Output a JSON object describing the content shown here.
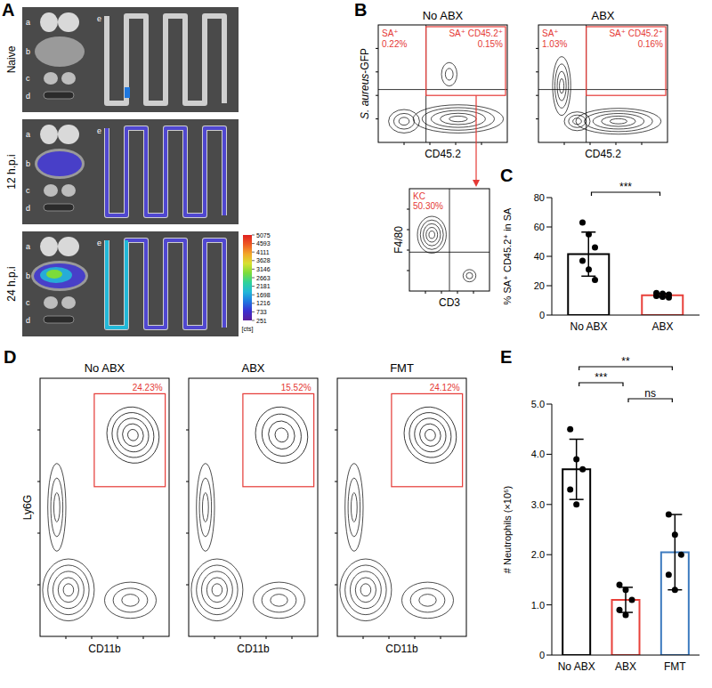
{
  "panel_a": {
    "label": "A",
    "rows": [
      "Naive",
      "12 h.p.i",
      "24 h.p.i"
    ],
    "organs": [
      "a",
      "b",
      "c",
      "d",
      "e"
    ],
    "colorbar": {
      "range": [
        251,
        5075
      ],
      "ticks": [
        251,
        733,
        1216,
        1698,
        2181,
        2663,
        3146,
        3628,
        4111,
        4593,
        5075
      ],
      "unit": "[cts]"
    }
  },
  "panel_b": {
    "label": "B",
    "x_label": "CD45.2",
    "y_label": "S. aureus-GFP",
    "plots": [
      {
        "title": "No ABX",
        "gates": [
          {
            "name": "SA⁺",
            "label": "0.22%"
          },
          {
            "name": "SA⁺ CD45.2⁺",
            "label": "0.15%"
          }
        ]
      },
      {
        "title": "ABX",
        "gates": [
          {
            "name": "SA⁺",
            "label": "1.03%"
          },
          {
            "name": "SA⁺ CD45.2⁺",
            "label": "0.16%"
          }
        ]
      }
    ],
    "subplot": {
      "gate": {
        "name": "KC",
        "label": "50.30%"
      },
      "x_label": "CD3",
      "y_label": "F4/80"
    }
  },
  "panel_d": {
    "label": "D",
    "x_label": "CD11b",
    "y_label": "Ly6G",
    "plots": [
      {
        "title": "No ABX",
        "gate": "24.23%"
      },
      {
        "title": "ABX",
        "gate": "15.52%"
      },
      {
        "title": "FMT",
        "gate": "24.12%"
      }
    ]
  },
  "chart_data": [
    {
      "type": "bar",
      "panel_label": "C",
      "y_label": "% SA⁺ CD45.2⁺ in SA",
      "categories": [
        "No ABX",
        "ABX"
      ],
      "values": [
        41.5,
        13.5
      ],
      "error": [
        15,
        1.2
      ],
      "points": [
        [
          63,
          55,
          46,
          37,
          31,
          24
        ],
        [
          15,
          14.5,
          14,
          13,
          12.5,
          12
        ]
      ],
      "colors": [
        "#000000",
        "#e8403a"
      ],
      "ylim": [
        0,
        80
      ],
      "yticks": [
        0,
        20,
        40,
        60,
        80
      ],
      "annotations": [
        {
          "from": "No ABX",
          "to": "ABX",
          "text": "***"
        }
      ]
    },
    {
      "type": "bar",
      "panel_label": "E",
      "y_label": "# Neutrophils (×10⁶)",
      "categories": [
        "No ABX",
        "ABX",
        "FMT"
      ],
      "values": [
        3.7,
        1.1,
        2.05
      ],
      "error": [
        0.6,
        0.25,
        0.75
      ],
      "points": [
        [
          4.5,
          3.9,
          3.7,
          3.3,
          3.0
        ],
        [
          1.4,
          1.3,
          1.1,
          0.9,
          0.8
        ],
        [
          2.8,
          2.4,
          2.0,
          1.6,
          1.3
        ]
      ],
      "colors": [
        "#000000",
        "#e8403a",
        "#3d7bbf"
      ],
      "ylim": [
        0,
        5
      ],
      "yticks": [
        0,
        {
          "value": 1,
          "label": "1.0"
        },
        {
          "value": 2,
          "label": "2.0"
        },
        {
          "value": 3,
          "label": "3.0"
        },
        {
          "value": 4,
          "label": "4.0"
        },
        {
          "value": 5,
          "label": "5.0"
        }
      ],
      "annotations": [
        {
          "from": "No ABX",
          "to": "FMT",
          "text": "**"
        },
        {
          "from": "No ABX",
          "to": "ABX",
          "text": "***"
        },
        {
          "from": "ABX",
          "to": "FMT",
          "text": "ns"
        }
      ]
    }
  ]
}
